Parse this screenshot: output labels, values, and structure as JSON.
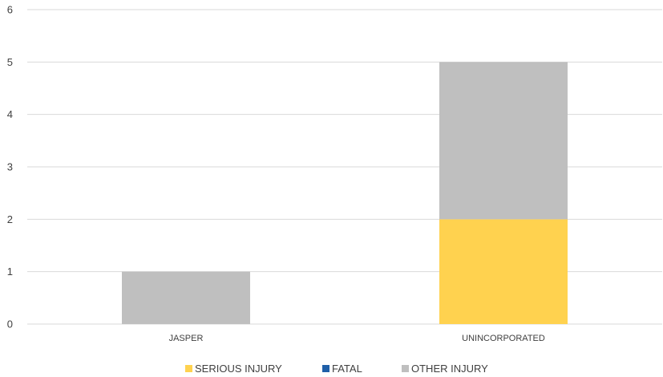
{
  "chart_data": {
    "type": "bar",
    "stacked": true,
    "title": "",
    "xlabel": "",
    "ylabel": "",
    "categories": [
      "JASPER",
      "UNINCORPORATED"
    ],
    "series": [
      {
        "name": "SERIOUS INJURY",
        "values": [
          0,
          2
        ],
        "color": "#FFD24F"
      },
      {
        "name": "FATAL",
        "values": [
          0,
          0
        ],
        "color": "#1F5FA8"
      },
      {
        "name": "OTHER INJURY",
        "values": [
          1,
          3
        ],
        "color": "#BFBFBF"
      }
    ],
    "ylim": [
      0,
      6
    ],
    "yticks": [
      0,
      1,
      2,
      3,
      4,
      5,
      6
    ],
    "grid": true,
    "legend_position": "bottom"
  }
}
